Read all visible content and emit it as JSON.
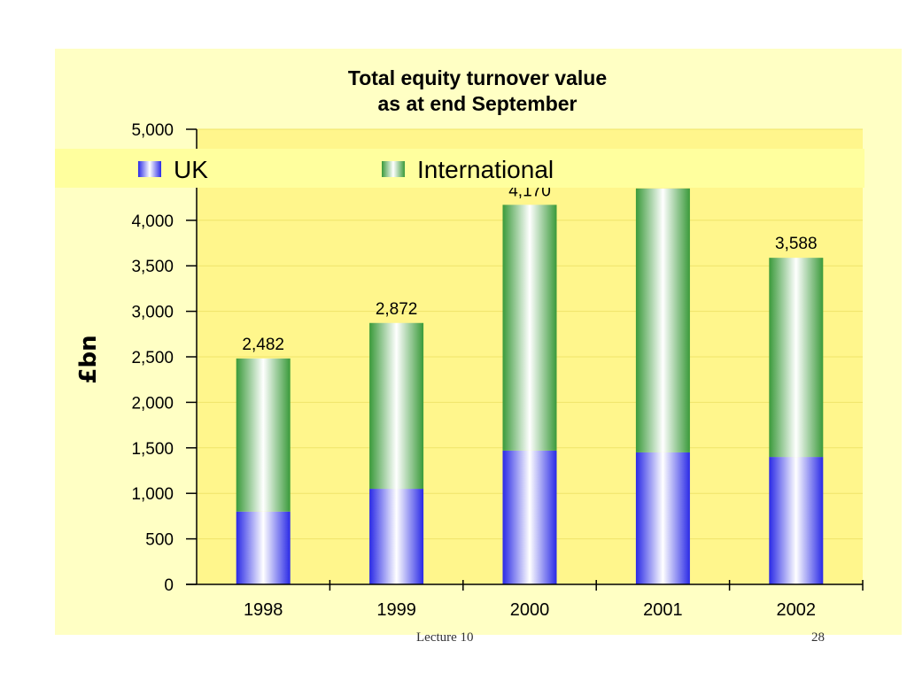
{
  "footer": {
    "left": "Lecture 10",
    "right": "28"
  },
  "colors": {
    "panel_bg": "#ffffc4",
    "plot_bg": "#fff68c",
    "uk": "#2a2ae6",
    "international": "#3a9a3a",
    "axis": "#000000"
  },
  "chart_data": {
    "type": "bar",
    "stacked": true,
    "title": "Total equity turnover value\nas at end September",
    "title_lines": [
      "Total equity turnover value",
      "as at end September"
    ],
    "xlabel": "",
    "ylabel": "£bn",
    "ylim": [
      0,
      5000
    ],
    "yticks": [
      0,
      500,
      1000,
      1500,
      2000,
      2500,
      3000,
      3500,
      4000,
      4500,
      5000
    ],
    "ytick_labels": [
      "0",
      "500",
      "1,000",
      "1,500",
      "2,000",
      "2,500",
      "3,000",
      "3,500",
      "4,000",
      "4,500",
      "5,000"
    ],
    "grid": true,
    "legend": "top",
    "categories": [
      "1998",
      "1999",
      "2000",
      "2001",
      "2002"
    ],
    "series": [
      {
        "name": "UK",
        "values": [
          800,
          1050,
          1470,
          1450,
          1400
        ]
      },
      {
        "name": "International",
        "values": [
          1682,
          1822,
          2700,
          2900,
          2188
        ]
      }
    ],
    "totals": [
      2482,
      2872,
      4170,
      4350,
      3588
    ],
    "total_labels": [
      "2,482",
      "2,872",
      "4,170",
      "",
      "3,588"
    ]
  }
}
